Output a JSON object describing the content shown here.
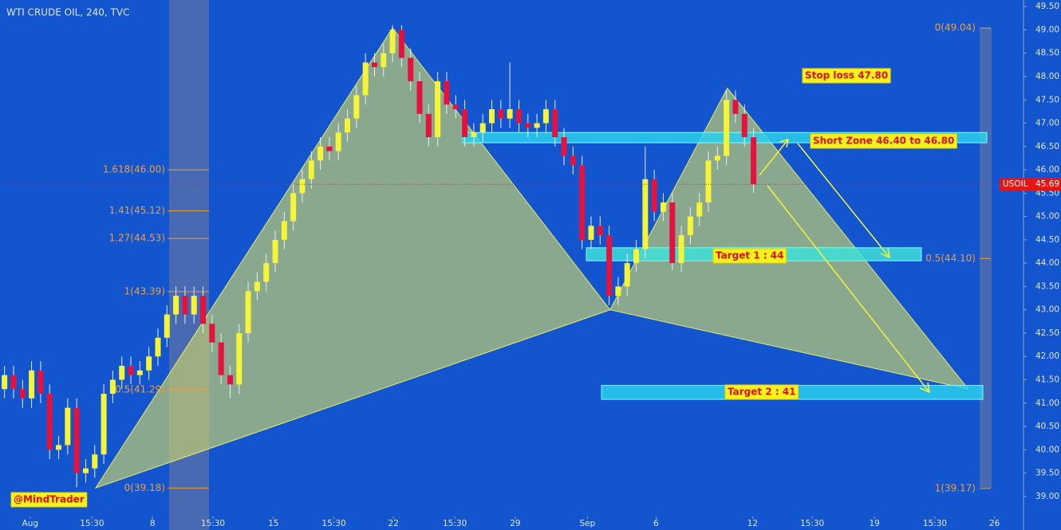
{
  "chart_data": {
    "type": "candlestick",
    "title": "WTI CRUDE OIL, 240, TVC",
    "open": [
      41.3,
      41.6,
      41.3,
      41.1,
      41.7,
      41.2,
      40.0,
      40.1,
      40.9,
      39.5,
      39.6,
      39.9,
      41.2,
      41.5,
      41.8,
      41.6,
      41.7,
      42.0,
      42.4,
      42.9,
      43.3,
      42.9,
      43.3,
      42.7,
      42.3,
      41.6,
      41.4,
      42.5,
      43.4,
      43.6,
      44.0,
      44.5,
      44.9,
      45.5,
      45.8,
      46.2,
      46.5,
      46.4,
      46.8,
      47.1,
      47.6,
      48.3,
      48.2,
      48.5,
      49.0,
      48.4,
      47.9,
      47.2,
      46.7,
      47.9,
      47.4,
      47.3,
      46.7,
      46.8,
      47.0,
      47.3,
      47.1,
      47.3,
      47.0,
      46.9,
      47.0,
      47.3,
      46.7,
      46.3,
      46.1,
      44.5,
      44.8,
      44.6,
      43.3,
      43.5,
      44.0,
      44.3,
      45.8,
      45.1,
      45.3,
      44.0,
      44.6,
      45.0,
      45.3,
      46.2,
      46.3,
      47.5,
      47.2,
      46.7
    ],
    "high": [
      41.8,
      41.8,
      41.5,
      41.9,
      41.9,
      41.4,
      40.3,
      41.1,
      41.1,
      39.8,
      40.1,
      41.4,
      41.7,
      42.0,
      42.0,
      41.9,
      42.2,
      42.6,
      43.1,
      43.5,
      43.5,
      43.5,
      43.5,
      42.9,
      42.5,
      41.8,
      42.7,
      43.6,
      43.8,
      44.2,
      44.7,
      45.1,
      45.7,
      46.0,
      46.4,
      46.7,
      46.7,
      47.0,
      47.3,
      47.8,
      48.5,
      48.5,
      48.7,
      49.1,
      49.1,
      48.6,
      48.1,
      47.4,
      48.1,
      48.1,
      47.6,
      47.5,
      47.0,
      47.2,
      47.5,
      47.5,
      48.3,
      47.5,
      47.2,
      47.2,
      47.5,
      47.5,
      46.9,
      46.5,
      46.3,
      45.0,
      45.0,
      44.8,
      43.7,
      44.2,
      44.5,
      46.5,
      46.0,
      45.5,
      45.5,
      44.8,
      45.2,
      45.5,
      46.4,
      46.5,
      47.7,
      47.7,
      47.4,
      46.9
    ],
    "low": [
      41.1,
      41.1,
      40.9,
      40.9,
      41.0,
      39.8,
      39.8,
      39.9,
      39.2,
      39.3,
      39.4,
      39.7,
      41.0,
      41.3,
      41.4,
      41.4,
      41.5,
      41.8,
      42.2,
      42.7,
      42.7,
      42.7,
      42.5,
      42.1,
      41.4,
      41.1,
      41.2,
      42.3,
      43.2,
      43.4,
      43.8,
      44.3,
      44.7,
      45.3,
      45.6,
      46.0,
      46.2,
      46.2,
      46.6,
      46.9,
      47.4,
      48.0,
      48.0,
      48.3,
      48.2,
      47.7,
      47.0,
      46.5,
      46.5,
      47.2,
      47.1,
      46.5,
      46.5,
      46.6,
      46.8,
      46.9,
      46.9,
      46.8,
      46.7,
      46.7,
      46.8,
      46.5,
      46.1,
      45.9,
      44.3,
      44.3,
      44.4,
      43.1,
      43.1,
      43.3,
      43.8,
      44.1,
      44.9,
      44.9,
      43.85,
      43.8,
      44.4,
      44.8,
      45.1,
      46.0,
      46.1,
      47.0,
      46.5,
      45.5
    ],
    "close": [
      41.6,
      41.3,
      41.1,
      41.7,
      41.2,
      40.0,
      40.1,
      40.9,
      39.5,
      39.6,
      39.9,
      41.2,
      41.5,
      41.8,
      41.6,
      41.7,
      42.0,
      42.4,
      42.9,
      43.3,
      42.9,
      43.3,
      42.7,
      42.3,
      41.6,
      41.4,
      42.5,
      43.4,
      43.6,
      44.0,
      44.5,
      44.9,
      45.5,
      45.8,
      46.2,
      46.5,
      46.4,
      46.8,
      47.1,
      47.6,
      48.3,
      48.2,
      48.5,
      49.0,
      48.4,
      47.9,
      47.2,
      46.7,
      47.9,
      47.4,
      47.3,
      46.7,
      46.8,
      47.0,
      47.3,
      47.1,
      47.3,
      47.0,
      46.9,
      47.0,
      47.3,
      46.7,
      46.3,
      46.1,
      44.5,
      44.8,
      44.6,
      43.3,
      43.5,
      44.0,
      44.3,
      45.8,
      45.1,
      45.3,
      44.0,
      44.6,
      45.0,
      45.3,
      46.2,
      46.3,
      47.5,
      47.2,
      46.7,
      45.69
    ],
    "up_color": "#f4f43a",
    "down_color": "#e3123f",
    "xlim": [
      0,
      110.5
    ],
    "xticks": [
      {
        "value": 3.34,
        "label": "Aug"
      },
      {
        "value": 10.2,
        "label": "15:30"
      },
      {
        "value": 16.9,
        "label": "8"
      },
      {
        "value": 23.6,
        "label": "15:30"
      },
      {
        "value": 30.3,
        "label": "15"
      },
      {
        "value": 37.0,
        "label": "15:30"
      },
      {
        "value": 43.6,
        "label": "22"
      },
      {
        "value": 50.4,
        "label": "15:30"
      },
      {
        "value": 57.1,
        "label": "29"
      },
      {
        "value": 65.1,
        "label": "Sep"
      },
      {
        "value": 72.7,
        "label": "6"
      },
      {
        "value": 83.4,
        "label": "12"
      },
      {
        "value": 90.0,
        "label": "15:30"
      },
      {
        "value": 96.9,
        "label": "19"
      },
      {
        "value": 103.6,
        "label": "15:30"
      },
      {
        "value": 110.2,
        "label": "26"
      }
    ],
    "ylim": [
      38.28,
      49.64
    ],
    "yticks": [
      {
        "value": 39,
        "label": "39.00"
      },
      {
        "value": 39.5,
        "label": "39.50"
      },
      {
        "value": 40,
        "label": "40.00"
      },
      {
        "value": 40.5,
        "label": "40.50"
      },
      {
        "value": 41,
        "label": "41.00"
      },
      {
        "value": 41.5,
        "label": "41.50"
      },
      {
        "value": 42,
        "label": "42.00"
      },
      {
        "value": 42.5,
        "label": "42.50"
      },
      {
        "value": 43,
        "label": "43.00"
      },
      {
        "value": 43.5,
        "label": "43.50"
      },
      {
        "value": 44,
        "label": "44.00"
      },
      {
        "value": 44.5,
        "label": "44.50"
      },
      {
        "value": 45,
        "label": "45.00"
      },
      {
        "value": 45.5,
        "label": "45.50"
      },
      {
        "value": 46,
        "label": "46.00"
      },
      {
        "value": 46.5,
        "label": "46.50"
      },
      {
        "value": 47,
        "label": "47.00"
      },
      {
        "value": 47.5,
        "label": "47.50"
      },
      {
        "value": 48,
        "label": "48.00"
      },
      {
        "value": 48.5,
        "label": "48.50"
      },
      {
        "value": 49,
        "label": "49.00"
      },
      {
        "value": 49.5,
        "label": "49.50"
      }
    ],
    "fib_left": [
      {
        "value": 46.0,
        "label": "1.618(46.00)"
      },
      {
        "value": 45.12,
        "label": "1.41(45.12)"
      },
      {
        "value": 44.53,
        "label": "1.27(44.53)"
      },
      {
        "value": 43.39,
        "label": "1(43.39)"
      },
      {
        "value": 41.29,
        "label": "0.5(41.29)"
      },
      {
        "value": 39.18,
        "label": "0(39.18)"
      }
    ],
    "fib_right": [
      {
        "value": 49.04,
        "label": "0(49.04)"
      },
      {
        "value": 44.1,
        "label": "0.5(44.10)"
      },
      {
        "value": 39.17,
        "label": "1(39.17)"
      }
    ],
    "pattern": {
      "x": [
        10.6,
        43.5,
        67.6,
        80.6,
        107.3
      ],
      "y": [
        39.18,
        49.04,
        43.0,
        47.75,
        41.3
      ]
    },
    "zones": [
      {
        "low": 46.58,
        "high": 46.8
      },
      {
        "low": 44.05,
        "high": 44.33
      },
      {
        "low": 41.08,
        "high": 41.38
      }
    ],
    "annotations": [
      "Stop loss 47.80",
      "Short Zone 46.40 to 46.80",
      "Target 1  : 44",
      "Target 2 : 41",
      "@MindTrader"
    ],
    "last_price": {
      "symbol": "USOIL",
      "value": 45.69
    }
  }
}
